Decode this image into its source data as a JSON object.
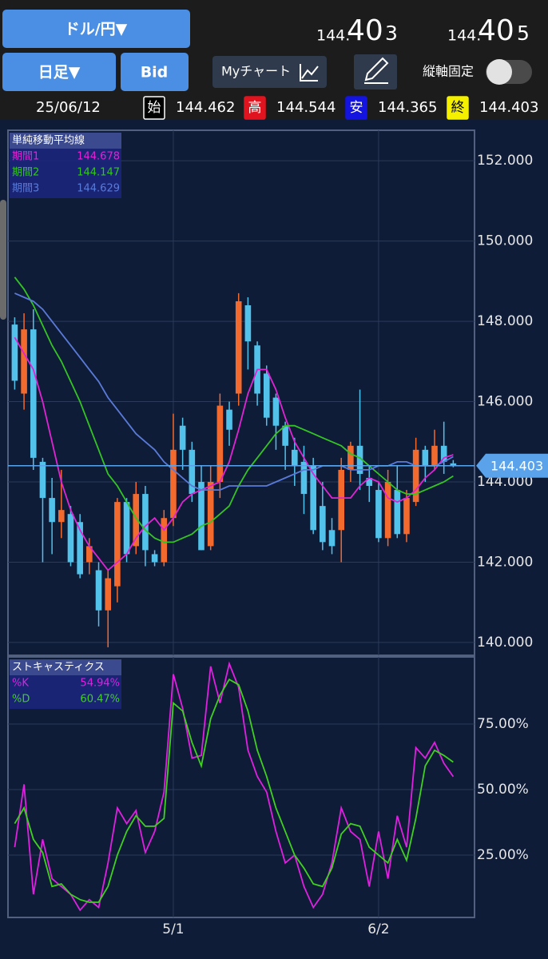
{
  "header": {
    "pair_button": "ドル/円▼",
    "period_button": "日足▼",
    "bid_button": "Bid",
    "my_chart_button": "Myチャート",
    "axis_lock_label": "縦軸固定",
    "bid_price": {
      "head": "144.",
      "big": "40",
      "tail": "3"
    },
    "ask_price": {
      "head": "144.",
      "big": "40",
      "tail": "5"
    },
    "ohlc": {
      "date": "25/06/12",
      "items": [
        {
          "label": "始",
          "value": "144.462"
        },
        {
          "label": "高",
          "value": "144.544"
        },
        {
          "label": "安",
          "value": "144.365"
        },
        {
          "label": "終",
          "value": "144.403"
        }
      ]
    }
  },
  "chart_data": [
    {
      "type": "candlestick",
      "legend_title": "単純移動平均線",
      "up_color": "#f26a2e",
      "down_color": "#52c2ea",
      "open": [
        147.92,
        146.2,
        147.8,
        144.5,
        143.6,
        143.0,
        143.2,
        143.0,
        142.0,
        141.8,
        140.8,
        141.4,
        143.5,
        142.4,
        143.7,
        142.2,
        142.0,
        143.1,
        145.4,
        144.8,
        144.0,
        142.4,
        144.0,
        145.8,
        146.2,
        148.4,
        147.4,
        146.7,
        146.1,
        145.4,
        144.8,
        144.5,
        144.4,
        143.4,
        142.8,
        142.8,
        144.3,
        144.9,
        144.1,
        143.8,
        142.6,
        143.8,
        142.7,
        143.5,
        144.8,
        144.4,
        144.9,
        144.462
      ],
      "high": [
        148.1,
        148.2,
        148.3,
        144.6,
        144.1,
        144.3,
        143.4,
        143.2,
        142.6,
        142.0,
        141.8,
        143.6,
        143.6,
        144.0,
        143.9,
        142.3,
        143.3,
        145.7,
        145.6,
        145.0,
        144.4,
        144.4,
        146.2,
        146.0,
        148.7,
        148.6,
        147.5,
        146.9,
        146.2,
        145.5,
        145.1,
        144.9,
        144.6,
        144.0,
        143.1,
        144.6,
        145.0,
        146.3,
        144.4,
        144.0,
        144.3,
        144.4,
        143.8,
        145.1,
        144.9,
        145.3,
        145.5,
        144.544
      ],
      "low": [
        146.3,
        145.8,
        144.3,
        142.0,
        142.2,
        142.6,
        141.9,
        141.6,
        141.7,
        140.4,
        139.88,
        141.0,
        142.0,
        142.2,
        141.9,
        141.9,
        141.9,
        142.9,
        144.3,
        143.5,
        142.3,
        142.3,
        143.6,
        144.9,
        145.9,
        146.8,
        145.9,
        145.4,
        144.8,
        144.3,
        143.9,
        143.2,
        142.7,
        142.3,
        142.2,
        142.0,
        144.0,
        143.8,
        143.5,
        142.5,
        142.4,
        142.6,
        142.5,
        143.4,
        144.0,
        144.3,
        144.2,
        144.365
      ],
      "close": [
        146.52,
        147.8,
        144.6,
        143.6,
        143.0,
        143.3,
        142.0,
        141.7,
        142.4,
        140.8,
        141.6,
        143.5,
        142.2,
        143.7,
        142.3,
        142.0,
        143.1,
        144.8,
        144.8,
        143.7,
        142.3,
        144.0,
        145.9,
        145.3,
        148.5,
        147.5,
        146.2,
        145.6,
        145.4,
        144.9,
        144.4,
        143.7,
        142.8,
        142.5,
        142.4,
        144.3,
        144.9,
        144.2,
        143.9,
        142.6,
        144.0,
        142.7,
        143.6,
        144.8,
        144.4,
        144.9,
        144.5,
        144.403
      ],
      "series": [
        {
          "name": "期間1",
          "legend_value": "144.678",
          "color": "#e024d4",
          "values": [
            147.6,
            147.2,
            146.8,
            146.0,
            145.0,
            144.0,
            143.3,
            142.8,
            142.4,
            142.1,
            141.8,
            142.0,
            142.2,
            142.6,
            142.9,
            143.1,
            142.8,
            143.1,
            143.5,
            143.7,
            143.8,
            143.9,
            144.0,
            144.5,
            145.3,
            146.2,
            146.8,
            146.8,
            146.3,
            145.6,
            145.0,
            144.6,
            144.2,
            143.9,
            143.6,
            143.6,
            143.6,
            143.9,
            144.1,
            144.0,
            143.6,
            143.5,
            143.6,
            143.8,
            144.1,
            144.3,
            144.6,
            144.678
          ]
        },
        {
          "name": "期間2",
          "legend_value": "144.147",
          "color": "#34c424",
          "values": [
            149.1,
            148.8,
            148.4,
            147.9,
            147.4,
            147.0,
            146.5,
            146.0,
            145.4,
            144.8,
            144.2,
            143.9,
            143.5,
            143.1,
            142.8,
            142.6,
            142.5,
            142.5,
            142.6,
            142.7,
            142.9,
            143.0,
            143.2,
            143.4,
            143.9,
            144.3,
            144.6,
            144.9,
            145.2,
            145.4,
            145.4,
            145.3,
            145.2,
            145.1,
            145.0,
            144.9,
            144.7,
            144.6,
            144.4,
            144.2,
            144.0,
            143.8,
            143.7,
            143.7,
            143.8,
            143.9,
            144.0,
            144.147
          ]
        },
        {
          "name": "期間3",
          "legend_value": "144.629",
          "color": "#5a7ad8",
          "values": [
            148.7,
            148.6,
            148.5,
            148.3,
            148.0,
            147.7,
            147.4,
            147.1,
            146.8,
            146.5,
            146.1,
            145.8,
            145.5,
            145.2,
            145.0,
            144.8,
            144.5,
            144.3,
            144.1,
            143.9,
            143.8,
            143.8,
            143.8,
            143.9,
            143.9,
            143.9,
            143.9,
            143.9,
            144.0,
            144.1,
            144.2,
            144.3,
            144.3,
            144.4,
            144.4,
            144.4,
            144.3,
            144.3,
            144.3,
            144.4,
            144.4,
            144.5,
            144.5,
            144.4,
            144.4,
            144.4,
            144.5,
            144.629
          ]
        }
      ],
      "price_line": {
        "value": 144.403,
        "label": "144.403",
        "color": "#5aa2ea"
      },
      "ylim": [
        139.68,
        152.76
      ],
      "yticks": [
        {
          "value": 152,
          "label": "152.000"
        },
        {
          "value": 150,
          "label": "150.000"
        },
        {
          "value": 148,
          "label": "148.000"
        },
        {
          "value": 146,
          "label": "146.000"
        },
        {
          "value": 144,
          "label": "144.000"
        },
        {
          "value": 142,
          "label": "142.000"
        },
        {
          "value": 140,
          "label": "140.000"
        }
      ],
      "grid": true
    },
    {
      "type": "line",
      "title": "ストキャスティクス",
      "categories": [
        null,
        null,
        null,
        null,
        null,
        null,
        null,
        null,
        null,
        null,
        null,
        null,
        null,
        null,
        null,
        null,
        null,
        "5/1",
        null,
        null,
        null,
        null,
        null,
        null,
        null,
        null,
        null,
        null,
        null,
        null,
        null,
        null,
        null,
        null,
        null,
        null,
        null,
        null,
        null,
        "6/2",
        null,
        null,
        null,
        null,
        null,
        null,
        null,
        null
      ],
      "series": [
        {
          "name": "%K",
          "legend_value": "54.94%",
          "color": "#e020e0",
          "values": [
            28,
            52,
            10,
            31,
            16,
            13,
            10,
            4,
            8,
            5,
            22,
            43,
            37,
            42,
            26,
            34,
            49,
            94,
            81,
            62,
            63,
            97,
            83,
            98,
            89,
            65,
            55,
            49,
            34,
            22,
            25,
            13,
            5,
            10,
            22,
            43,
            34,
            31,
            13,
            34,
            16,
            40,
            28,
            66,
            62,
            68,
            60,
            54.94
          ]
        },
        {
          "name": "%D",
          "legend_value": "60.47%",
          "color": "#40d020",
          "values": [
            37,
            43,
            31,
            26,
            13,
            14,
            10,
            8,
            7,
            7,
            13,
            25,
            34,
            40,
            36,
            36,
            39,
            83,
            80,
            68,
            59,
            77,
            86,
            92,
            90,
            80,
            65,
            55,
            43,
            34,
            25,
            20,
            14,
            13,
            20,
            33,
            37,
            36,
            28,
            25,
            22,
            31,
            23,
            39,
            59,
            65,
            63,
            60.47
          ]
        }
      ],
      "ylim": [
        1.2,
        100.6
      ],
      "yticks": [
        {
          "value": 75,
          "label": "75.00%"
        },
        {
          "value": 50,
          "label": "50.00%"
        },
        {
          "value": 25,
          "label": "25.00%"
        }
      ],
      "grid": true
    }
  ]
}
